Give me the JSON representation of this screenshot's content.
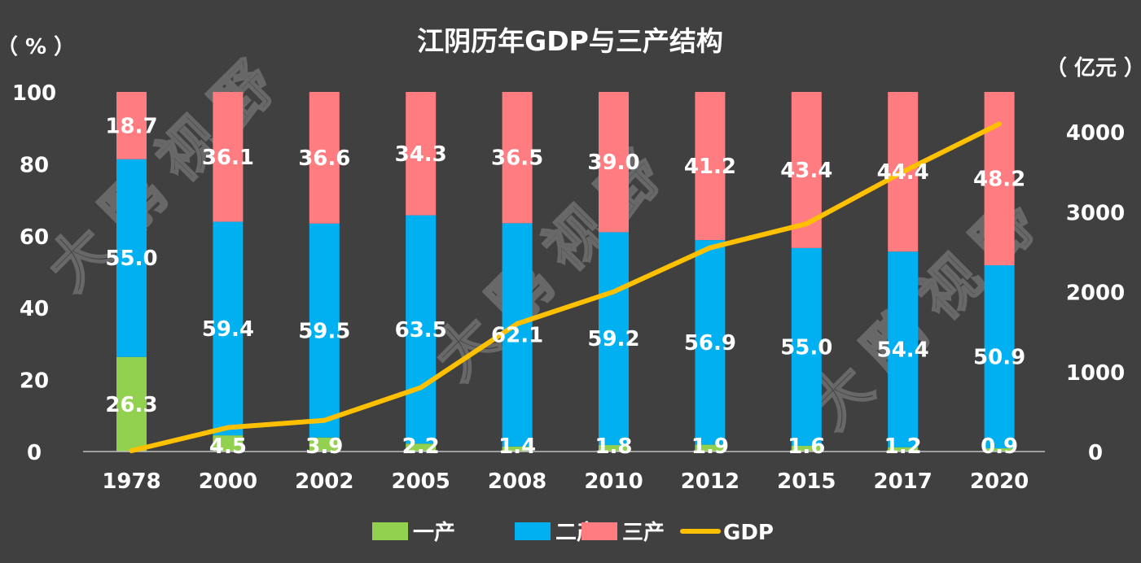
{
  "chart_data": {
    "type": "bar",
    "stacked": true,
    "title": "江阴历年GDP与三产结构",
    "left_unit": "（ % ）",
    "right_unit": "（ 亿元 ）",
    "categories": [
      "1978",
      "2000",
      "2002",
      "2005",
      "2008",
      "2010",
      "2012",
      "2015",
      "2017",
      "2020"
    ],
    "series": [
      {
        "name": "一产",
        "color": "#92D050",
        "values": [
          26.3,
          4.5,
          3.9,
          2.2,
          1.4,
          1.8,
          1.9,
          1.6,
          1.2,
          0.9
        ],
        "labels": [
          "26.3",
          "4.5",
          "3.9",
          "2.2",
          "1.4",
          "1.8",
          "1.9",
          "1.6",
          "1.2",
          "0.9"
        ]
      },
      {
        "name": "二产",
        "color": "#00B0F0",
        "values": [
          55.0,
          59.4,
          59.5,
          63.5,
          62.1,
          59.2,
          56.9,
          55.0,
          54.4,
          50.9
        ],
        "labels": [
          "55.0",
          "59.4",
          "59.5",
          "63.5",
          "62.1",
          "59.2",
          "56.9",
          "55.0",
          "54.4",
          "50.9"
        ]
      },
      {
        "name": "三产",
        "color": "#FF7C80",
        "values": [
          18.7,
          36.1,
          36.6,
          34.3,
          36.5,
          39.0,
          41.2,
          43.4,
          44.4,
          48.2
        ],
        "labels": [
          "18.7",
          "36.1",
          "36.6",
          "34.3",
          "36.5",
          "39.0",
          "41.2",
          "43.4",
          "44.4",
          "48.2"
        ]
      }
    ],
    "line_series": {
      "name": "GDP",
      "color": "#FFC000",
      "axis": "right",
      "values": [
        10,
        300,
        390,
        800,
        1600,
        2000,
        2550,
        2850,
        3500,
        4100
      ]
    },
    "y_left": {
      "min": 0,
      "max": 100,
      "ticks": [
        "0",
        "20",
        "40",
        "60",
        "80",
        "100"
      ]
    },
    "y_right": {
      "min": 0,
      "max": 4500,
      "ticks": [
        "0",
        "1000",
        "2000",
        "3000",
        "4000"
      ]
    },
    "legend": [
      "一产",
      "二产",
      "三产",
      "GDP"
    ],
    "legend_position": "bottom",
    "grid": false,
    "watermark": "大鹏视野"
  }
}
